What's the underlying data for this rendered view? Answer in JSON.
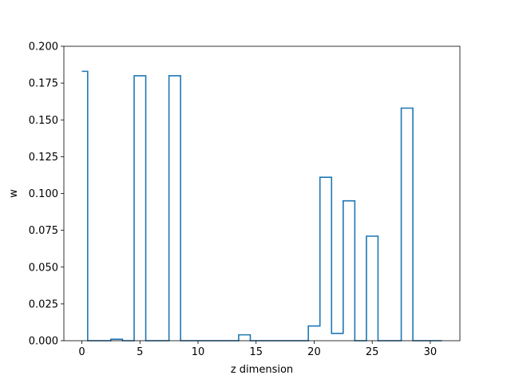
{
  "chart_data": {
    "type": "step",
    "title": "",
    "xlabel": "z dimension",
    "ylabel": "w",
    "xlim": [
      -1.55,
      32.55
    ],
    "ylim": [
      0,
      0.2
    ],
    "x_ticks": [
      0,
      5,
      10,
      15,
      20,
      25,
      30
    ],
    "y_ticks": [
      0.0,
      0.025,
      0.05,
      0.075,
      0.1,
      0.125,
      0.15,
      0.175,
      0.2
    ],
    "y_tick_labels": [
      "0.000",
      "0.025",
      "0.050",
      "0.075",
      "0.100",
      "0.125",
      "0.150",
      "0.175",
      "0.200"
    ],
    "x_tick_labels": [
      "0",
      "5",
      "10",
      "15",
      "20",
      "25",
      "30"
    ],
    "grid": false,
    "legend": false,
    "color": "#1f77b4",
    "series": [
      {
        "x": [
          0,
          1,
          2,
          3,
          4,
          5,
          6,
          7,
          8,
          9,
          10,
          11,
          12,
          13,
          14,
          15,
          16,
          17,
          18,
          19,
          20,
          21,
          22,
          23,
          24,
          25,
          26,
          27,
          28,
          29,
          30,
          31
        ],
        "values": [
          0.183,
          0.0,
          0.0,
          0.001,
          0.0,
          0.18,
          0.0,
          0.0,
          0.18,
          0.0,
          0.0,
          0.0,
          0.0,
          0.0,
          0.004,
          0.0,
          0.0,
          0.0,
          0.0,
          0.0,
          0.01,
          0.111,
          0.005,
          0.095,
          0.0,
          0.071,
          0.0,
          0.0,
          0.158,
          0.0,
          0.0,
          0.0
        ]
      }
    ]
  }
}
